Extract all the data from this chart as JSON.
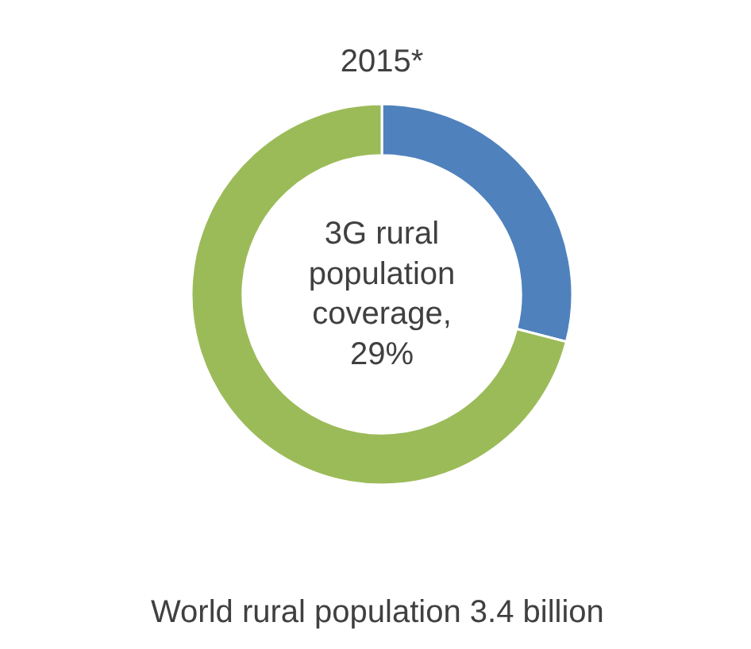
{
  "chart_data": {
    "type": "donut",
    "title": "2015*",
    "categories": [
      null,
      null
    ],
    "values": [
      29,
      71
    ],
    "colors": [
      "#4f81bd",
      "#9bbb59"
    ],
    "annotations": [
      "3G rural\npopulation\ncoverage,\n29%",
      "World  rural population 3.4 billion"
    ]
  }
}
